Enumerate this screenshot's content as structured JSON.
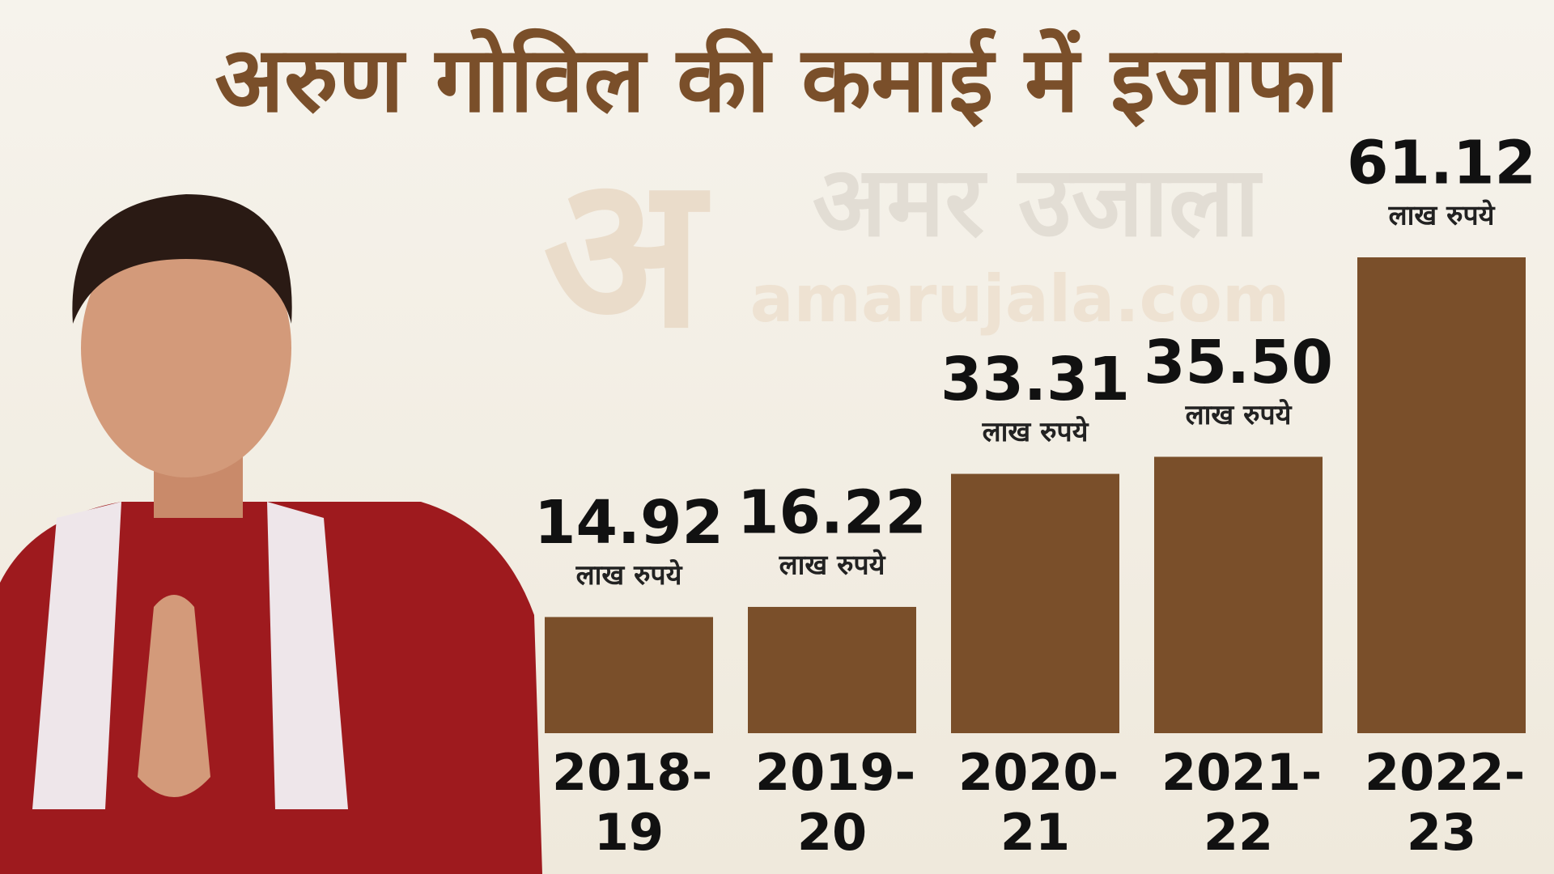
{
  "chart_data": {
    "type": "bar",
    "title": "अरुण गोविल की कमाई में इजाफा",
    "watermark": {
      "logo": "अ",
      "brand": "अमर उजाला",
      "site": "amarujala.com"
    },
    "unit": "लाख रुपये",
    "categories": [
      "2018-19",
      "2019-20",
      "2020-21",
      "2021-22",
      "2022-23"
    ],
    "values": [
      14.92,
      16.22,
      33.31,
      35.5,
      61.12
    ],
    "value_labels": [
      "14.92",
      "16.22",
      "33.31",
      "35.50",
      "61.12"
    ],
    "color": "#7a4f2a"
  }
}
